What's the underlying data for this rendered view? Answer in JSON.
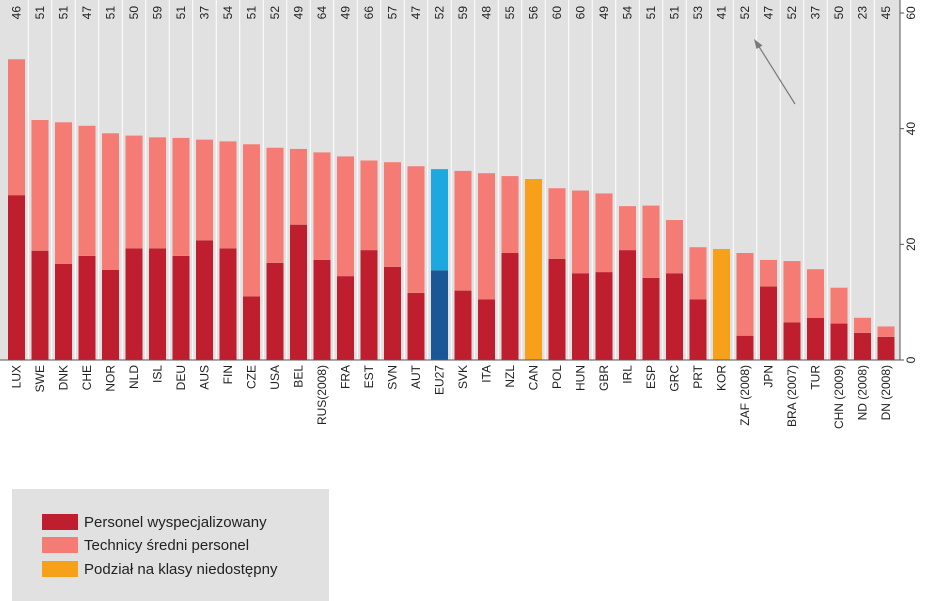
{
  "chart_data": {
    "type": "bar",
    "stacked": true,
    "categories": [
      "LUX",
      "SWE",
      "DNK",
      "CHE",
      "NOR",
      "NLD",
      "ISL",
      "DEU",
      "AUS",
      "FIN",
      "CZE",
      "USA",
      "BEL",
      "RUS(2008)",
      "FRA",
      "EST",
      "SVN",
      "AUT",
      "EU27",
      "SVK",
      "ITA",
      "NZL",
      "CAN",
      "POL",
      "HUN",
      "GBR",
      "IRL",
      "ESP",
      "GRC",
      "PRT",
      "KOR",
      "ZAF (2008)",
      "JPN",
      "BRA (2007)",
      "TUR",
      "CHN (2009)",
      "ND (2008)",
      "DN (2008)"
    ],
    "top_labels": [
      "46",
      "51",
      "51",
      "47",
      "51",
      "50",
      "59",
      "51",
      "37",
      "54",
      "51",
      "52",
      "49",
      "64",
      "49",
      "66",
      "57",
      "47",
      "52",
      "59",
      "48",
      "55",
      "56",
      "60",
      "60",
      "49",
      "54",
      "51",
      "51",
      "53",
      "41",
      "52",
      "47",
      "52",
      "37",
      "50",
      "23",
      "45"
    ],
    "series": [
      {
        "name": "Personel wyspecjalizowany",
        "values": [
          28.5,
          18.9,
          16.6,
          18.0,
          15.6,
          19.3,
          19.3,
          18.0,
          20.7,
          19.3,
          11.0,
          16.8,
          23.4,
          17.3,
          14.5,
          19.0,
          16.1,
          11.6,
          15.5,
          12.0,
          10.5,
          18.5,
          null,
          17.5,
          15.0,
          15.2,
          19.0,
          14.2,
          15.0,
          10.5,
          null,
          4.2,
          12.7,
          6.5,
          7.3,
          6.3,
          4.7,
          4.0
        ]
      },
      {
        "name": "Technicy średni personel",
        "values": [
          23.5,
          22.6,
          24.5,
          22.5,
          23.6,
          19.5,
          19.2,
          20.4,
          17.4,
          18.5,
          26.3,
          19.9,
          13.1,
          18.6,
          20.7,
          15.5,
          18.1,
          21.9,
          17.5,
          20.7,
          21.8,
          13.3,
          null,
          12.2,
          14.3,
          13.6,
          7.6,
          12.5,
          9.2,
          9.0,
          null,
          14.3,
          4.6,
          10.6,
          8.4,
          6.2,
          2.6,
          1.8
        ]
      },
      {
        "name": "Podział na klasy niedostępny",
        "values": [
          null,
          null,
          null,
          null,
          null,
          null,
          null,
          null,
          null,
          null,
          null,
          null,
          null,
          null,
          null,
          null,
          null,
          null,
          null,
          null,
          null,
          null,
          31.3,
          null,
          null,
          null,
          null,
          null,
          null,
          null,
          19.2,
          null,
          null,
          null,
          null,
          null,
          null,
          null
        ]
      }
    ],
    "highlight": {
      "category": "EU27",
      "colors": [
        "#1a5797",
        "#1ea8e0"
      ]
    },
    "ylim": [
      0,
      60
    ],
    "yticks": [
      0,
      20,
      40,
      60
    ],
    "y_axis_side": "right",
    "grid": false,
    "annotation": "arrow pointing to KOR top label",
    "legend_position": "bottom-left",
    "colors": {
      "specialized": "#be1e2d",
      "technicians": "#f47c74",
      "no_breakdown": "#f7a11a",
      "background": "#e1e1e1"
    }
  },
  "legend": {
    "items": [
      {
        "label": "Personel wyspecjalizowany",
        "color": "#be1e2d"
      },
      {
        "label": "Technicy średni personel",
        "color": "#f47c74"
      },
      {
        "label": "Podział na klasy niedostępny",
        "color": "#f7a11a"
      }
    ]
  }
}
